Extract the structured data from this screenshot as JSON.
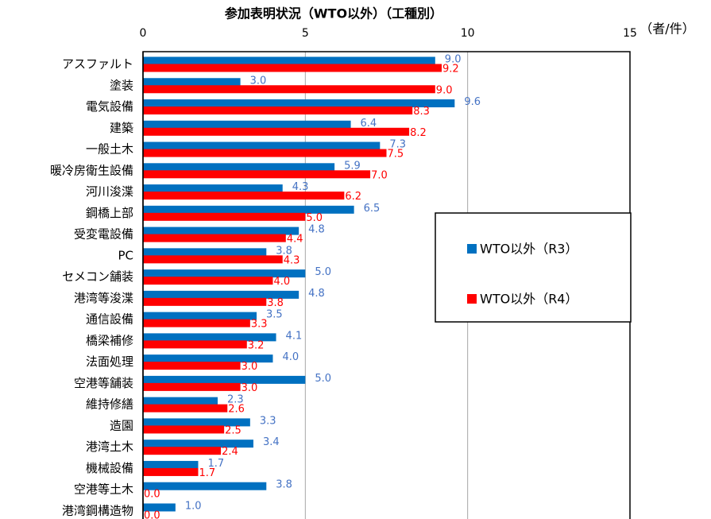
{
  "chart_data": {
    "type": "barh",
    "title": "参加表明状況（WTO以外）（工種別）",
    "unit_label": "（者/件）",
    "categories": [
      "アスファルト",
      "塗装",
      "電気設備",
      "建築",
      "一般土木",
      "暖冷房衛生設備",
      "河川浚渫",
      "鋼橋上部",
      "受変電設備",
      "PC",
      "セメコン舗装",
      "港湾等浚渫",
      "通信設備",
      "橋梁補修",
      "法面処理",
      "空港等舗装",
      "維持修繕",
      "造園",
      "港湾土木",
      "機械設備",
      "空港等土木",
      "港湾鋼構造物"
    ],
    "series": [
      {
        "name": "WTO以外（R3）",
        "color": "#0070c0",
        "label_color": "#4472c4",
        "values": [
          9.0,
          3.0,
          9.6,
          6.4,
          7.3,
          5.9,
          4.3,
          6.5,
          4.8,
          3.8,
          5.0,
          4.8,
          3.5,
          4.1,
          4.0,
          5.0,
          2.3,
          3.3,
          3.4,
          1.7,
          3.8,
          1.0
        ],
        "value_labels": [
          "9.0",
          "3.0",
          "9.6",
          "6.4",
          "7.3",
          "5.9",
          "4.3",
          "6.5",
          "4.8",
          "3.8",
          "5.0",
          "4.8",
          "3.5",
          "4.1",
          "4.0",
          "5.0",
          "2.3",
          "3.3",
          "3.4",
          "1.7",
          "3.8",
          "1.0"
        ]
      },
      {
        "name": "WTO以外（R4）",
        "color": "#ff0000",
        "label_color": "#ff0000",
        "values": [
          9.2,
          9.0,
          8.3,
          8.2,
          7.5,
          7.0,
          6.2,
          5.0,
          4.4,
          4.3,
          4.0,
          3.8,
          3.3,
          3.2,
          3.0,
          3.0,
          2.6,
          2.5,
          2.4,
          1.7,
          0.0,
          0.0
        ],
        "value_labels": [
          "9.2",
          "9.0",
          "8.3",
          "8.2",
          "7.5",
          "7.0",
          "6.2",
          "5.0",
          "4.4",
          "4.3",
          "4.0",
          "3.8",
          "3.3",
          "3.2",
          "3.0",
          "3.0",
          "2.6",
          "2.5",
          "2.4",
          "1.7",
          "0.0",
          "0.0"
        ]
      }
    ],
    "xlim": [
      0,
      15
    ],
    "xticks": [
      0,
      5,
      10,
      15
    ],
    "grid": true,
    "legend": "right"
  }
}
